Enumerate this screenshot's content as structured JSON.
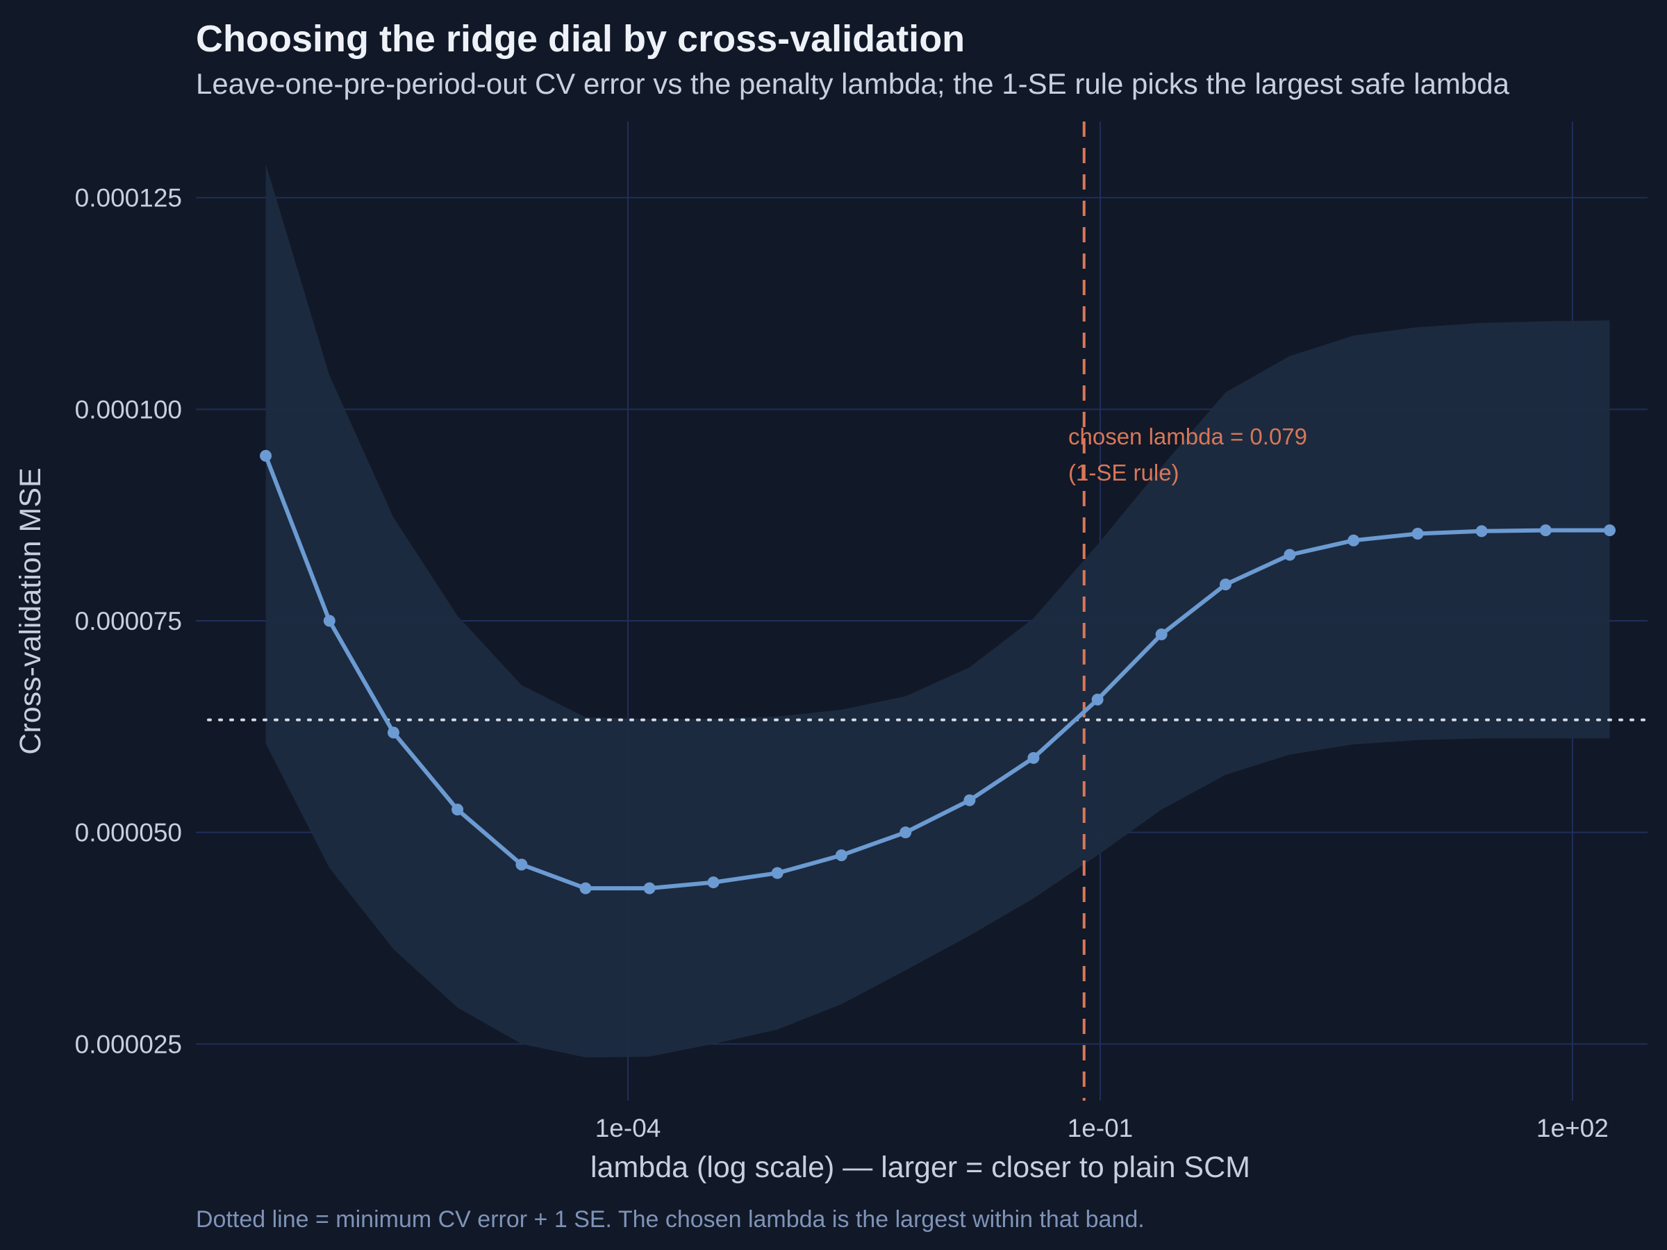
{
  "colors": {
    "background": "#111827",
    "grid": "#1f2f5c",
    "line": "#6b9bd2",
    "band": "#1e2b40",
    "chosen": "#d97757",
    "threshold": "#d6dbe4",
    "caption": "#7f93b8"
  },
  "chart_data": {
    "type": "line",
    "title": "Choosing the ridge dial by cross-validation",
    "subtitle": "Leave-one-pre-period-out CV error vs the penalty lambda; the 1-SE rule picks the largest safe lambda",
    "xlabel": "lambda (log scale) — larger = closer to plain SCM",
    "ylabel": "Cross-validation MSE",
    "caption": "Dotted line = minimum CV error + 1 SE. The chosen lambda is the largest within that band.",
    "x_scale": "log10",
    "xlim": [
      1.8e-07,
      300
    ],
    "ylim": [
      1.83e-05,
      0.000134
    ],
    "x_ticks": [
      {
        "value": 0.0001,
        "label": "1e-04"
      },
      {
        "value": 0.1,
        "label": "1e-01"
      },
      {
        "value": 100,
        "label": "1e+02"
      }
    ],
    "y_ticks": [
      {
        "value": 2.5e-05,
        "label": "0.000025"
      },
      {
        "value": 5e-05,
        "label": "0.000050"
      },
      {
        "value": 7.5e-05,
        "label": "0.000075"
      },
      {
        "value": 0.0001,
        "label": "0.000100"
      },
      {
        "value": 0.000125,
        "label": "0.000125"
      }
    ],
    "grid": true,
    "series": [
      {
        "x": [
          5e-07,
          1.27e-06,
          3.24e-06,
          8.26e-06,
          2.11e-05,
          5.38e-05,
          0.000137,
          0.000349,
          0.00089,
          0.00227,
          0.0058,
          0.0148,
          0.0377,
          0.0962,
          0.245,
          0.626,
          1.6,
          4.07,
          10.4,
          26.5,
          67.6,
          172.4
        ],
        "values": [
          9.45e-05,
          7.5e-05,
          6.18e-05,
          5.27e-05,
          4.62e-05,
          4.34e-05,
          4.34e-05,
          4.41e-05,
          4.52e-05,
          4.73e-05,
          5e-05,
          5.38e-05,
          5.88e-05,
          6.57e-05,
          7.34e-05,
          7.93e-05,
          8.28e-05,
          8.45e-05,
          8.53e-05,
          8.56e-05,
          8.57e-05,
          8.57e-05
        ],
        "lower": [
          6.05e-05,
          4.58e-05,
          3.62e-05,
          2.93e-05,
          2.5e-05,
          2.34e-05,
          2.35e-05,
          2.5e-05,
          2.67e-05,
          2.97e-05,
          3.37e-05,
          3.78e-05,
          4.22e-05,
          4.73e-05,
          5.27e-05,
          5.68e-05,
          5.92e-05,
          6.04e-05,
          6.09e-05,
          6.11e-05,
          6.11e-05,
          6.11e-05
        ],
        "upper": [
          0.000129,
          0.000104,
          8.72e-05,
          7.56e-05,
          6.74e-05,
          6.36e-05,
          6.34e-05,
          6.34e-05,
          6.37e-05,
          6.45e-05,
          6.61e-05,
          6.95e-05,
          7.53e-05,
          8.4e-05,
          9.32e-05,
          0.000102,
          0.0001063,
          0.0001087,
          0.0001097,
          0.0001102,
          0.0001104,
          0.0001105
        ]
      }
    ],
    "threshold_y": 6.33e-05,
    "chosen_lambda": 0.079,
    "annotation": {
      "line1": "chosen lambda = 0.079",
      "line2": "(1-SE rule)"
    }
  }
}
